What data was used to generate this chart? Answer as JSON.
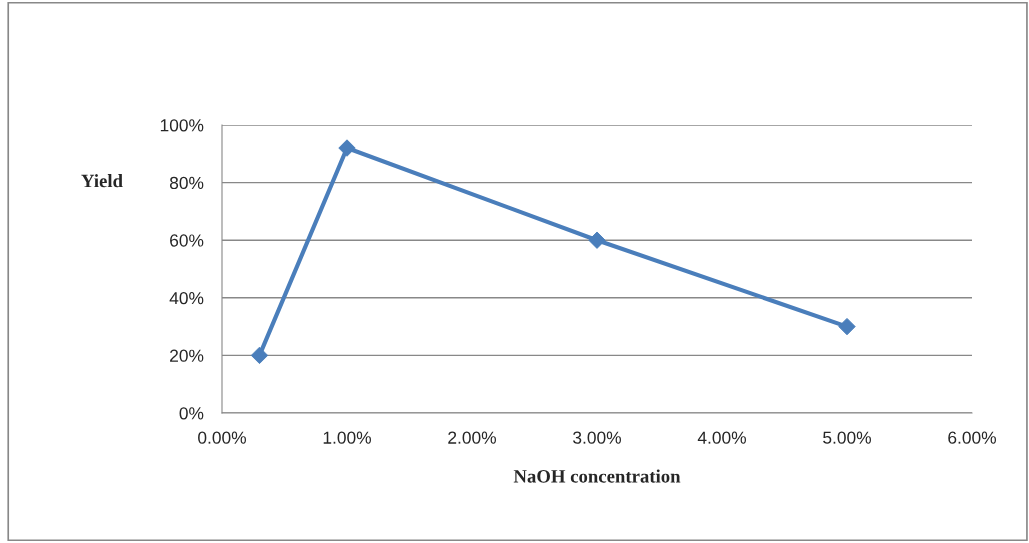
{
  "chart_data": {
    "type": "line",
    "xlabel": "NaOH concentration",
    "ylabel": "Yield",
    "x": [
      0.3,
      1,
      3,
      5
    ],
    "series": [
      {
        "color": "#4a7ebb",
        "values": [
          20,
          92,
          60,
          30
        ]
      }
    ],
    "xlim": [
      0,
      6
    ],
    "xticks": [
      {
        "value": 0,
        "label": "0.00%"
      },
      {
        "value": 1,
        "label": "1.00%"
      },
      {
        "value": 2,
        "label": "2.00%"
      },
      {
        "value": 3,
        "label": "3.00%"
      },
      {
        "value": 4,
        "label": "4.00%"
      },
      {
        "value": 5,
        "label": "5.00%"
      },
      {
        "value": 6,
        "label": "6.00%"
      }
    ],
    "ylim": [
      0,
      100
    ],
    "yticks": [
      {
        "value": 0,
        "label": "0%"
      },
      {
        "value": 20,
        "label": "20%"
      },
      {
        "value": 40,
        "label": "40%"
      },
      {
        "value": 60,
        "label": "60%"
      },
      {
        "value": 80,
        "label": "80%"
      },
      {
        "value": 100,
        "label": "100%"
      }
    ],
    "grid": "y",
    "legend": false,
    "marker": "diamond",
    "line_style": "solid"
  }
}
